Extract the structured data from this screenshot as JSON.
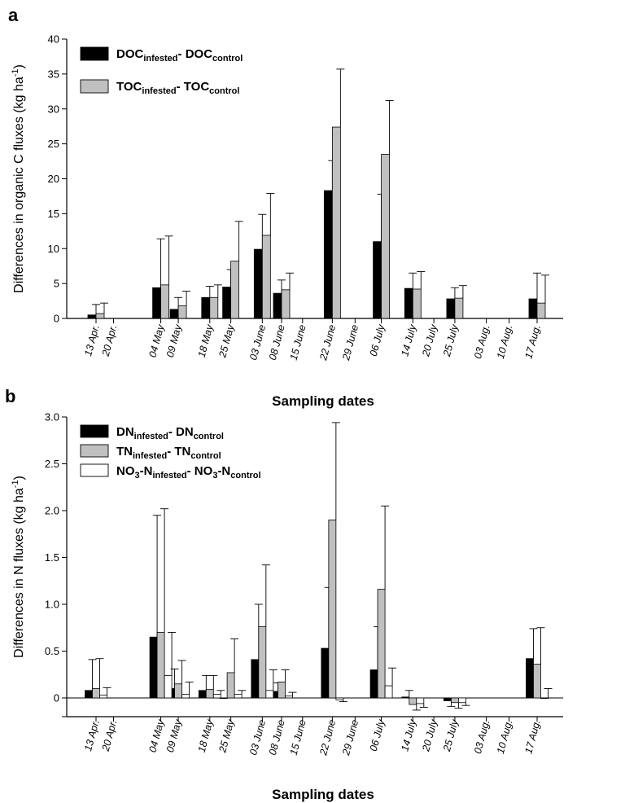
{
  "chart_data": [
    {
      "type": "bar",
      "panel_label": "a",
      "ylabel_parts": [
        "Differences in organic C fluxes (kg ha",
        "-1",
        ")"
      ],
      "xlabel": "Sampling dates",
      "ylim": [
        0,
        40
      ],
      "yticks": [
        "0",
        "5",
        "10",
        "15",
        "20",
        "25",
        "30",
        "35",
        "40"
      ],
      "categories": [
        "13 Apr.",
        "20 Apr.",
        "04 May",
        "09 May",
        "18 May",
        "25 May",
        "03 June",
        "08 June",
        "15 June",
        "22 June",
        "29 June",
        "06 July",
        "14 July",
        "20 July",
        "25 July",
        "03 Aug.",
        "10 Aug.",
        "17 Aug."
      ],
      "legend": [
        {
          "parts": [
            {
              "t": "DOC"
            },
            {
              "t": "infested",
              "sub": true
            },
            {
              "t": "- DOC"
            },
            {
              "t": "control",
              "sub": true
            }
          ],
          "color": "#000000"
        },
        {
          "parts": [
            {
              "t": "TOC"
            },
            {
              "t": "infested",
              "sub": true
            },
            {
              "t": "- TOC"
            },
            {
              "t": "control",
              "sub": true
            }
          ],
          "color": "#c0c0c0"
        }
      ],
      "series": [
        {
          "color": "#000000",
          "values": [
            0.5,
            null,
            4.4,
            1.3,
            3.0,
            4.5,
            9.9,
            3.6,
            null,
            18.3,
            null,
            11.0,
            4.3,
            null,
            2.8,
            null,
            null,
            2.8
          ],
          "errors": [
            1.5,
            null,
            7.0,
            1.7,
            1.6,
            2.5,
            5.0,
            1.9,
            null,
            4.3,
            null,
            6.8,
            2.2,
            null,
            1.6,
            null,
            null,
            3.7
          ]
        },
        {
          "color": "#c0c0c0",
          "values": [
            0.7,
            null,
            4.8,
            1.8,
            3.0,
            8.2,
            11.9,
            4.1,
            null,
            27.4,
            null,
            23.5,
            4.2,
            null,
            2.9,
            null,
            null,
            2.2
          ],
          "errors": [
            1.5,
            null,
            7.0,
            2.1,
            1.8,
            5.7,
            6.0,
            2.4,
            null,
            8.3,
            null,
            7.7,
            2.5,
            null,
            1.8,
            null,
            null,
            4.0
          ]
        }
      ]
    },
    {
      "type": "bar",
      "panel_label": "b",
      "ylabel_parts": [
        "Differences in N fluxes (kg ha",
        "-1",
        ")"
      ],
      "xlabel": "Sampling dates",
      "ylim": [
        -0.2,
        3.0
      ],
      "yticks": [
        "0",
        "0.5",
        "1.0",
        "1.5",
        "2.0",
        "2.5",
        "3.0"
      ],
      "categories": [
        "13 Apr.",
        "20 Apr.",
        "04 May",
        "09 May",
        "18 May",
        "25 May",
        "03 June",
        "08 June",
        "15 June",
        "22 June",
        "29 June",
        "06 July",
        "14 July",
        "20 July",
        "25 July",
        "03 Aug.",
        "10 Aug.",
        "17 Aug."
      ],
      "legend": [
        {
          "parts": [
            {
              "t": "DN"
            },
            {
              "t": "infested",
              "sub": true
            },
            {
              "t": "- DN"
            },
            {
              "t": "control",
              "sub": true
            }
          ],
          "color": "#000000"
        },
        {
          "parts": [
            {
              "t": "TN"
            },
            {
              "t": "infested",
              "sub": true
            },
            {
              "t": "- TN"
            },
            {
              "t": "control",
              "sub": true
            }
          ],
          "color": "#c0c0c0"
        },
        {
          "parts": [
            {
              "t": "NO"
            },
            {
              "t": "3",
              "sub": true
            },
            {
              "t": "-N"
            },
            {
              "t": "infested",
              "sub": true
            },
            {
              "t": "- NO"
            },
            {
              "t": "3",
              "sub": true
            },
            {
              "t": "-N"
            },
            {
              "t": "control",
              "sub": true
            }
          ],
          "color": "#ffffff"
        }
      ],
      "series": [
        {
          "color": "#000000",
          "values": [
            0.08,
            null,
            0.65,
            0.1,
            0.08,
            0.0,
            0.41,
            0.07,
            null,
            0.53,
            null,
            0.3,
            0.01,
            null,
            -0.03,
            null,
            null,
            0.42
          ],
          "errors": [
            0.33,
            null,
            1.3,
            0.21,
            0.16,
            0.0,
            0.59,
            0.09,
            null,
            0.65,
            null,
            0.46,
            0.07,
            null,
            0.06,
            null,
            null,
            0.32
          ]
        },
        {
          "color": "#c0c0c0",
          "values": [
            0.1,
            null,
            0.7,
            0.15,
            0.09,
            0.27,
            0.76,
            0.17,
            null,
            1.9,
            null,
            1.16,
            -0.07,
            null,
            -0.05,
            null,
            null,
            0.36
          ],
          "errors": [
            0.32,
            null,
            1.32,
            0.25,
            0.15,
            0.36,
            0.66,
            0.13,
            null,
            1.04,
            null,
            0.89,
            0.06,
            null,
            0.06,
            null,
            null,
            0.39
          ]
        },
        {
          "color": "#ffffff",
          "values": [
            0.03,
            null,
            0.24,
            0.04,
            0.04,
            0.04,
            0.08,
            0.02,
            null,
            -0.02,
            null,
            0.13,
            -0.06,
            null,
            -0.05,
            null,
            null,
            0.0
          ],
          "errors": [
            0.08,
            null,
            0.46,
            0.13,
            0.04,
            0.04,
            0.22,
            0.04,
            null,
            0.02,
            null,
            0.19,
            0.04,
            null,
            0.03,
            null,
            null,
            0.1
          ]
        }
      ]
    }
  ]
}
